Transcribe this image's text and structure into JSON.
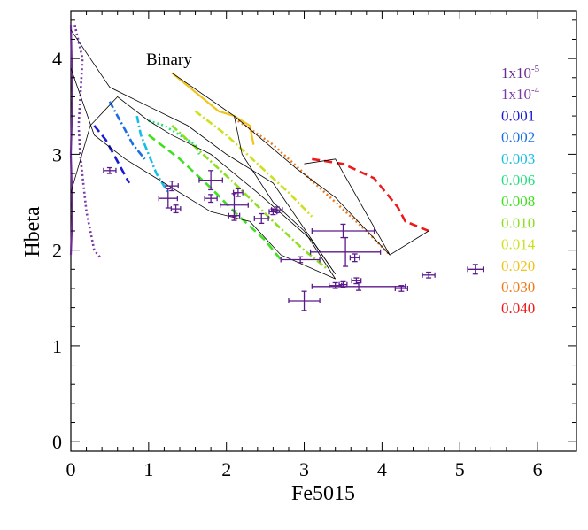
{
  "chart_data": {
    "type": "scatter",
    "xlabel": "Fe5015",
    "ylabel": "Hbeta",
    "xlim": [
      0,
      6.5
    ],
    "ylim": [
      -0.1,
      4.5
    ],
    "xticks": [
      "0",
      "1",
      "2",
      "3",
      "4",
      "5",
      "6"
    ],
    "yticks": [
      "0",
      "1",
      "2",
      "3",
      "4"
    ],
    "grid": false,
    "legend_position": "right",
    "annotation": "Binary",
    "legend": [
      {
        "label": "1x10",
        "sup": "-5",
        "color": "#6a2c91"
      },
      {
        "label": "1x10",
        "sup": "-4",
        "color": "#7a3aa8"
      },
      {
        "label": "0.001",
        "sup": "",
        "color": "#1a1ad6"
      },
      {
        "label": "0.002",
        "sup": "",
        "color": "#1c6fe0"
      },
      {
        "label": "0.003",
        "sup": "",
        "color": "#18bde6"
      },
      {
        "label": "0.006",
        "sup": "",
        "color": "#1fe07a"
      },
      {
        "label": "0.008",
        "sup": "",
        "color": "#3ee01f"
      },
      {
        "label": "0.010",
        "sup": "",
        "color": "#8be01f"
      },
      {
        "label": "0.014",
        "sup": "",
        "color": "#cfe01f"
      },
      {
        "label": "0.020",
        "sup": "",
        "color": "#f0c419"
      },
      {
        "label": "0.030",
        "sup": "",
        "color": "#f07a19"
      },
      {
        "label": "0.040",
        "sup": "",
        "color": "#f01919"
      }
    ],
    "series": [
      {
        "name": "1x10-5",
        "color": "#6a2c91",
        "dash": "solid",
        "points": [
          [
            0.0,
            4.35
          ],
          [
            0.02,
            3.6
          ],
          [
            0.0,
            3.0
          ],
          [
            0.02,
            2.4
          ],
          [
            0.0,
            1.95
          ]
        ]
      },
      {
        "name": "1x10-4",
        "color": "#7a3aa8",
        "dash": "dot",
        "points": [
          [
            0.05,
            4.35
          ],
          [
            0.15,
            4.0
          ],
          [
            0.1,
            3.3
          ],
          [
            0.12,
            3.0
          ],
          [
            0.2,
            2.4
          ],
          [
            0.3,
            2.0
          ],
          [
            0.38,
            1.92
          ]
        ]
      },
      {
        "name": "0.001",
        "color": "#1a1ad6",
        "dash": "dash",
        "points": [
          [
            0.3,
            3.3
          ],
          [
            0.45,
            3.15
          ],
          [
            0.55,
            3.0
          ],
          [
            0.65,
            2.85
          ],
          [
            0.75,
            2.7
          ]
        ]
      },
      {
        "name": "0.002",
        "color": "#1c6fe0",
        "dash": "dashdot",
        "points": [
          [
            0.5,
            3.55
          ],
          [
            0.6,
            3.4
          ],
          [
            0.7,
            3.25
          ],
          [
            0.8,
            3.1
          ],
          [
            0.95,
            2.95
          ]
        ]
      },
      {
        "name": "0.003",
        "color": "#18bde6",
        "dash": "dashdot",
        "points": [
          [
            0.85,
            3.4
          ],
          [
            0.9,
            3.2
          ],
          [
            1.0,
            3.0
          ],
          [
            1.1,
            2.8
          ],
          [
            1.25,
            2.6
          ]
        ]
      },
      {
        "name": "0.006",
        "color": "#1fe07a",
        "dash": "dot",
        "points": [
          [
            1.0,
            3.35
          ],
          [
            1.2,
            3.3
          ],
          [
            1.4,
            3.2
          ],
          [
            1.6,
            3.1
          ],
          [
            1.65,
            3.0
          ]
        ]
      },
      {
        "name": "0.008",
        "color": "#3ee01f",
        "dash": "dash",
        "points": [
          [
            1.0,
            3.2
          ],
          [
            1.4,
            2.95
          ],
          [
            1.8,
            2.65
          ],
          [
            2.1,
            2.4
          ],
          [
            2.5,
            2.1
          ],
          [
            2.7,
            1.9
          ]
        ]
      },
      {
        "name": "0.010",
        "color": "#8be01f",
        "dash": "dashdot",
        "points": [
          [
            1.3,
            3.3
          ],
          [
            1.7,
            3.0
          ],
          [
            2.1,
            2.7
          ],
          [
            2.6,
            2.3
          ],
          [
            3.0,
            2.0
          ],
          [
            3.3,
            1.8
          ]
        ]
      },
      {
        "name": "0.014",
        "color": "#cfe01f",
        "dash": "dashdot",
        "points": [
          [
            1.6,
            3.45
          ],
          [
            2.0,
            3.2
          ],
          [
            2.4,
            2.9
          ],
          [
            2.8,
            2.6
          ],
          [
            3.1,
            2.35
          ]
        ]
      },
      {
        "name": "0.020",
        "color": "#f0c419",
        "dash": "solid",
        "points": [
          [
            1.3,
            3.85
          ],
          [
            1.9,
            3.45
          ],
          [
            2.1,
            3.4
          ],
          [
            2.3,
            3.3
          ],
          [
            2.35,
            3.1
          ]
        ]
      },
      {
        "name": "0.030",
        "color": "#f07a19",
        "dash": "dot",
        "points": [
          [
            2.15,
            3.35
          ],
          [
            2.6,
            3.1
          ],
          [
            3.0,
            2.8
          ],
          [
            3.4,
            2.5
          ],
          [
            3.8,
            2.2
          ],
          [
            4.1,
            1.95
          ]
        ]
      },
      {
        "name": "0.040",
        "color": "#f01919",
        "dash": "dash",
        "points": [
          [
            3.1,
            2.95
          ],
          [
            3.5,
            2.9
          ],
          [
            3.9,
            2.75
          ],
          [
            4.2,
            2.45
          ],
          [
            4.3,
            2.3
          ],
          [
            4.45,
            2.25
          ],
          [
            4.6,
            2.2
          ]
        ]
      }
    ],
    "binary_tracks": [
      [
        [
          0.0,
          4.3
        ],
        [
          0.5,
          3.7
        ],
        [
          1.0,
          3.5
        ],
        [
          1.5,
          3.3
        ],
        [
          2.0,
          3.0
        ],
        [
          2.6,
          2.7
        ],
        [
          3.4,
          1.75
        ]
      ],
      [
        [
          0.0,
          2.6
        ],
        [
          0.25,
          3.3
        ],
        [
          0.6,
          3.6
        ],
        [
          1.0,
          3.35
        ],
        [
          1.3,
          3.2
        ],
        [
          1.8,
          3.0
        ],
        [
          2.4,
          2.6
        ],
        [
          3.1,
          2.1
        ],
        [
          3.4,
          1.75
        ]
      ],
      [
        [
          0.0,
          3.9
        ],
        [
          0.3,
          3.2
        ],
        [
          0.7,
          2.95
        ],
        [
          1.2,
          2.7
        ],
        [
          1.8,
          2.4
        ],
        [
          2.3,
          2.3
        ],
        [
          2.7,
          1.95
        ],
        [
          3.4,
          1.7
        ]
      ],
      [
        [
          1.3,
          3.85
        ],
        [
          2.1,
          3.4
        ],
        [
          2.2,
          3.0
        ],
        [
          2.6,
          2.5
        ],
        [
          3.0,
          2.2
        ],
        [
          3.4,
          1.7
        ]
      ],
      [
        [
          2.1,
          3.4
        ],
        [
          2.9,
          2.85
        ],
        [
          3.4,
          2.55
        ],
        [
          4.1,
          1.95
        ]
      ],
      [
        [
          3.0,
          2.9
        ],
        [
          3.4,
          2.95
        ],
        [
          4.1,
          1.95
        ],
        [
          4.6,
          2.2
        ]
      ]
    ],
    "observations": [
      {
        "x": 0.5,
        "y": 2.83,
        "xerr": 0.08,
        "yerr": 0.03
      },
      {
        "x": 1.3,
        "y": 2.67,
        "xerr": 0.08,
        "yerr": 0.05
      },
      {
        "x": 1.35,
        "y": 2.43,
        "xerr": 0.06,
        "yerr": 0.04
      },
      {
        "x": 1.25,
        "y": 2.54,
        "xerr": 0.12,
        "yerr": 0.1
      },
      {
        "x": 1.8,
        "y": 2.73,
        "xerr": 0.15,
        "yerr": 0.1
      },
      {
        "x": 1.8,
        "y": 2.54,
        "xerr": 0.08,
        "yerr": 0.04
      },
      {
        "x": 2.15,
        "y": 2.6,
        "xerr": 0.06,
        "yerr": 0.04
      },
      {
        "x": 2.1,
        "y": 2.47,
        "xerr": 0.18,
        "yerr": 0.12
      },
      {
        "x": 2.1,
        "y": 2.36,
        "xerr": 0.07,
        "yerr": 0.05
      },
      {
        "x": 2.45,
        "y": 2.33,
        "xerr": 0.09,
        "yerr": 0.05
      },
      {
        "x": 2.65,
        "y": 2.42,
        "xerr": 0.07,
        "yerr": 0.03
      },
      {
        "x": 2.6,
        "y": 2.4,
        "xerr": 0.05,
        "yerr": 0.03
      },
      {
        "x": 3.5,
        "y": 2.2,
        "xerr": 0.4,
        "yerr": 0.07
      },
      {
        "x": 3.53,
        "y": 1.98,
        "xerr": 0.45,
        "yerr": 0.15
      },
      {
        "x": 2.95,
        "y": 1.9,
        "xerr": 0.25,
        "yerr": 0.03
      },
      {
        "x": 3.65,
        "y": 1.92,
        "xerr": 0.06,
        "yerr": 0.04
      },
      {
        "x": 3.0,
        "y": 1.47,
        "xerr": 0.2,
        "yerr": 0.1
      },
      {
        "x": 3.4,
        "y": 1.63,
        "xerr": 0.08,
        "yerr": 0.03
      },
      {
        "x": 3.5,
        "y": 1.64,
        "xerr": 0.05,
        "yerr": 0.03
      },
      {
        "x": 3.67,
        "y": 1.68,
        "xerr": 0.06,
        "yerr": 0.03
      },
      {
        "x": 3.7,
        "y": 1.62,
        "xerr": 0.6,
        "yerr": 0.04
      },
      {
        "x": 4.25,
        "y": 1.6,
        "xerr": 0.08,
        "yerr": 0.03
      },
      {
        "x": 4.6,
        "y": 1.74,
        "xerr": 0.08,
        "yerr": 0.03
      },
      {
        "x": 5.2,
        "y": 1.8,
        "xerr": 0.1,
        "yerr": 0.05
      }
    ],
    "observation_color": "#5b1a8c"
  }
}
